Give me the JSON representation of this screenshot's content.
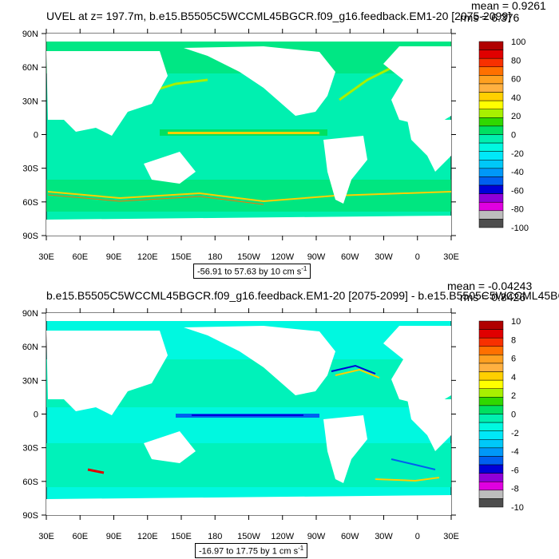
{
  "panels": [
    {
      "title": "UVEL at z= 197.7m, b.e15.B5505C5WCCML45BGCR.f09_g16.feedback.EM1-20 [2075-2099]",
      "mean": "mean = 0.9261",
      "rms": "rms = 6.376",
      "range_text": "-56.91 to 57.63 by 10 cm s",
      "range_sup": "-1",
      "colorbar_labels": [
        "100",
        "80",
        "60",
        "40",
        "20",
        "0",
        "-20",
        "-40",
        "-60",
        "-80",
        "-100"
      ],
      "colorbar_colors": [
        "#4d4d4d",
        "#bdbdbd",
        "#e000e0",
        "#9000d8",
        "#0000d8",
        "#0060f0",
        "#0098f8",
        "#00c8f8",
        "#00e8f8",
        "#00f8e0",
        "#00f0b0",
        "#00e060",
        "#30d800",
        "#a8f000",
        "#ffff00",
        "#ffd000",
        "#ffb040",
        "#ffa020",
        "#ff7000",
        "#f83000",
        "#e00000",
        "#b00000"
      ]
    },
    {
      "title": "b.e15.B5505C5WCCML45BGCR.f09_g16.feedback.EM1-20 [2075-2099] - b.e15.B5505C5WCCML45BG",
      "mean": "mean = -0.04243",
      "rms": "rms = 0.8426",
      "range_text": "-16.97 to 17.75 by 1 cm s",
      "range_sup": "-1",
      "colorbar_labels": [
        "10",
        "8",
        "6",
        "4",
        "2",
        "0",
        "-2",
        "-4",
        "-6",
        "-8",
        "-10"
      ],
      "colorbar_colors": [
        "#4d4d4d",
        "#bdbdbd",
        "#e000e0",
        "#9000d8",
        "#0000d8",
        "#0060f0",
        "#0098f8",
        "#00c8f8",
        "#00e8f8",
        "#00f8e0",
        "#00f0b0",
        "#00e060",
        "#30d800",
        "#a8f000",
        "#ffff00",
        "#ffd000",
        "#ffb040",
        "#ffa020",
        "#ff7000",
        "#f83000",
        "#e00000",
        "#b00000"
      ]
    }
  ],
  "lat_labels": [
    "90N",
    "60N",
    "30N",
    "0",
    "30S",
    "60S",
    "90S"
  ],
  "lon_labels": [
    "30E",
    "60E",
    "90E",
    "120E",
    "150E",
    "180",
    "150W",
    "120W",
    "90W",
    "60W",
    "30W",
    "0",
    "30E"
  ],
  "colors": {
    "land": "#ffffff",
    "ocean_base": "#00f0b0",
    "ocean_pos": "#00e060",
    "ocean_neg": "#00f8e0"
  }
}
